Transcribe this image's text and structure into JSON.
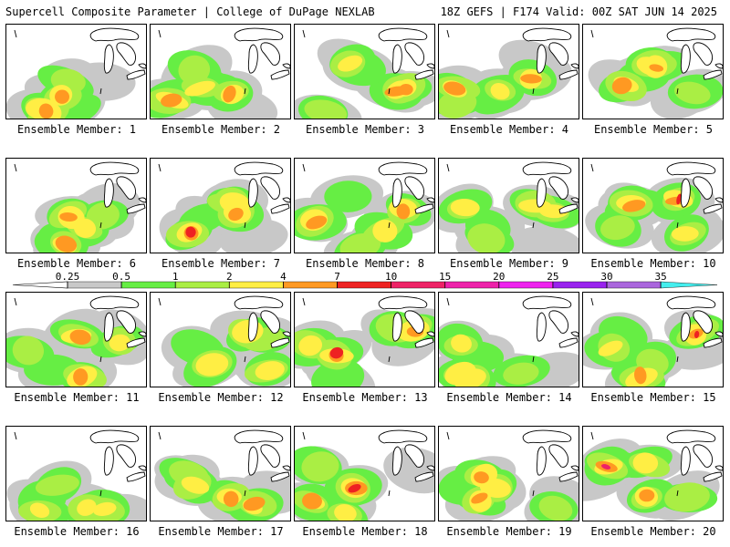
{
  "header": {
    "left_title": "Supercell Composite Parameter | College of DuPage NEXLAB",
    "right_title": "18Z GEFS | F174 Valid: 00Z SAT JUN 14 2025"
  },
  "colors": {
    "lvl_025": "#c8c8c8",
    "lvl_05": "#66ee44",
    "lvl_1": "#aaee44",
    "lvl_2": "#ffee44",
    "lvl_4": "#ff9922",
    "lvl_7": "#ee2222",
    "lvl_10": "#ee2266",
    "lvl_15": "#ee22aa",
    "lvl_20": "#ee22ee",
    "lvl_25": "#9922ee",
    "lvl_30": "#aa66dd",
    "lvl_35": "#44eeee"
  },
  "colorbar": {
    "ticks": [
      "0.25",
      "0.5",
      "1",
      "2",
      "4",
      "7",
      "10",
      "15",
      "20",
      "25",
      "30",
      "35"
    ]
  },
  "members": [
    {
      "label": "Ensemble Member: 1",
      "max_level": 4
    },
    {
      "label": "Ensemble Member: 2",
      "max_level": 4
    },
    {
      "label": "Ensemble Member: 3",
      "max_level": 4
    },
    {
      "label": "Ensemble Member: 4",
      "max_level": 4
    },
    {
      "label": "Ensemble Member: 5",
      "max_level": 7
    },
    {
      "label": "Ensemble Member: 6",
      "max_level": 4
    },
    {
      "label": "Ensemble Member: 7",
      "max_level": 7
    },
    {
      "label": "Ensemble Member: 8",
      "max_level": 4
    },
    {
      "label": "Ensemble Member: 9",
      "max_level": 2
    },
    {
      "label": "Ensemble Member: 10",
      "max_level": 7
    },
    {
      "label": "Ensemble Member: 11",
      "max_level": 4
    },
    {
      "label": "Ensemble Member: 12",
      "max_level": 2
    },
    {
      "label": "Ensemble Member: 13",
      "max_level": 7
    },
    {
      "label": "Ensemble Member: 14",
      "max_level": 2
    },
    {
      "label": "Ensemble Member: 15",
      "max_level": 7
    },
    {
      "label": "Ensemble Member: 16",
      "max_level": 2
    },
    {
      "label": "Ensemble Member: 17",
      "max_level": 4
    },
    {
      "label": "Ensemble Member: 18",
      "max_level": 10
    },
    {
      "label": "Ensemble Member: 19",
      "max_level": 4
    },
    {
      "label": "Ensemble Member: 20",
      "max_level": 10
    }
  ]
}
